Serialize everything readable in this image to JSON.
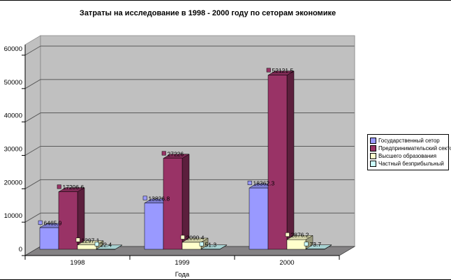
{
  "chart_data": {
    "type": "bar",
    "style": "3d-column",
    "title": "Затраты на исследование в 1998 - 2000 году по сеторам экономике",
    "xlabel": "Года",
    "ylabel": "",
    "categories": [
      "1998",
      "1999",
      "2000"
    ],
    "series": [
      {
        "name": "Государственный сетор",
        "color": "#9999FF",
        "values": [
          6465.9,
          13826.8,
          18362.3
        ],
        "labels": [
          "6465.9",
          "13826.8",
          "18362.3"
        ]
      },
      {
        "name": "Предпринимательский сектор",
        "color": "#993366",
        "values": [
          17206.6,
          27226,
          52121.5
        ],
        "labels": [
          "17206.6",
          "27226",
          "52121.5"
        ]
      },
      {
        "name": "Высшего образования",
        "color": "#FFFFCC",
        "values": [
          1297.1,
          2090.4,
          2876.2
        ],
        "labels": [
          "1297.1",
          "2090.4",
          "2876.2"
        ]
      },
      {
        "name": "Частный безприбыльный",
        "color": "#CCFFFF",
        "values": [
          22.4,
          51.3,
          73.7
        ],
        "labels": [
          "22.4",
          "51.3",
          "73.7"
        ]
      }
    ],
    "yticks": [
      0,
      10000,
      20000,
      30000,
      40000,
      50000,
      60000
    ],
    "ylim": [
      0,
      60000
    ],
    "grid": true,
    "legend_position": "right",
    "walls_color": "#C0C0C0",
    "floor_color": "#848284"
  }
}
